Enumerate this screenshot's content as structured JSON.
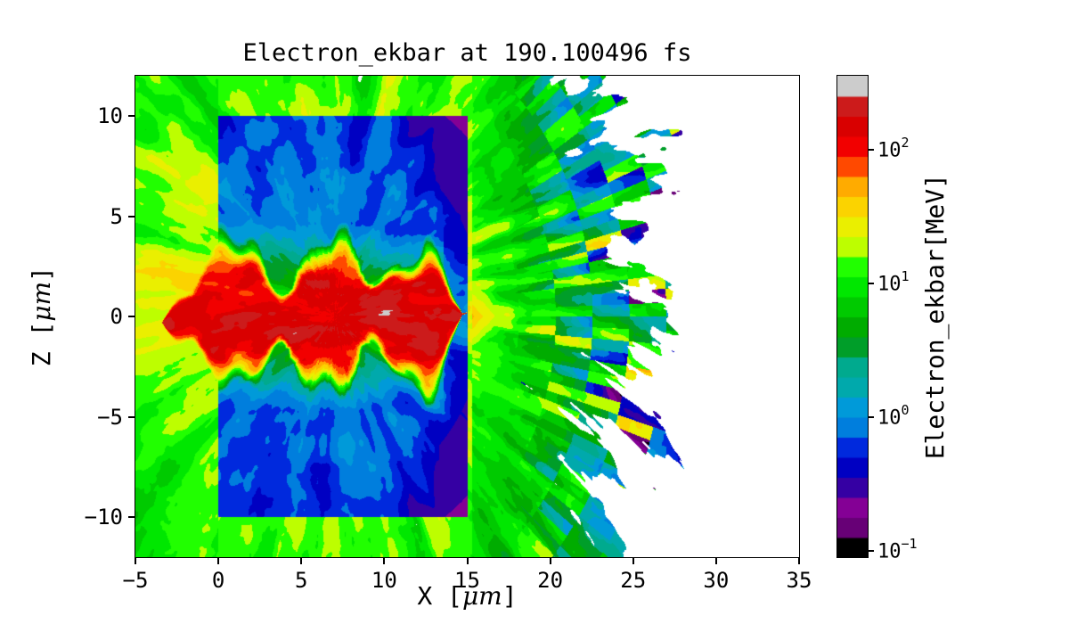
{
  "figure": {
    "background": "#ffffff"
  },
  "chart_data": {
    "type": "heatmap",
    "title": "Electron_ekbar at 190.100496 fs",
    "xlabel": "X [μm]",
    "ylabel": "Z [μm]",
    "xlim": [
      -5,
      35
    ],
    "ylim": [
      -12,
      12
    ],
    "xticks": [
      -5,
      0,
      5,
      10,
      15,
      20,
      25,
      30,
      35
    ],
    "xtick_labels": [
      "−5",
      "0",
      "5",
      "10",
      "15",
      "20",
      "25",
      "30",
      "35"
    ],
    "yticks": [
      10,
      5,
      0,
      -5,
      -10
    ],
    "ytick_labels": [
      "10",
      "5",
      "0",
      "−5",
      "−10"
    ],
    "grid": false,
    "background_masked_color": "#ffffff",
    "colorbar": {
      "label": "Electron_ekbar[MeV]",
      "scale": "log",
      "unit": "MeV",
      "tick_values": [
        100,
        10,
        1,
        0.1
      ],
      "tick_exponents": [
        "2",
        "1",
        "0",
        "−1"
      ],
      "log10_min": -1.05,
      "log10_max": 2.55,
      "n_levels": 24,
      "colormap": "nipy_spectral",
      "colormap_stops": [
        [
          0.0,
          "#000000"
        ],
        [
          0.05,
          "#770088"
        ],
        [
          0.1,
          "#880099"
        ],
        [
          0.15,
          "#0000aa"
        ],
        [
          0.2,
          "#0000dd"
        ],
        [
          0.25,
          "#0077dd"
        ],
        [
          0.3,
          "#0099dd"
        ],
        [
          0.35,
          "#00aaaa"
        ],
        [
          0.4,
          "#00aa88"
        ],
        [
          0.45,
          "#009900"
        ],
        [
          0.5,
          "#00bb00"
        ],
        [
          0.55,
          "#00dd00"
        ],
        [
          0.6,
          "#00ff00"
        ],
        [
          0.65,
          "#bbff00"
        ],
        [
          0.7,
          "#eeee00"
        ],
        [
          0.75,
          "#ffcc00"
        ],
        [
          0.8,
          "#ff9900"
        ],
        [
          0.85,
          "#ff0000"
        ],
        [
          0.9,
          "#dd0000"
        ],
        [
          0.95,
          "#cc0000"
        ],
        [
          1.0,
          "#cccccc"
        ]
      ]
    },
    "field_features": {
      "target_box_x_um": [
        0,
        15
      ],
      "target_box_z_um": [
        -10,
        10
      ],
      "hot_channel": {
        "x_range_um": [
          -3,
          14.7
        ],
        "z_center_um": 0,
        "half_width_um": 1.5,
        "peak_log10_mev": 2.5
      },
      "source_focus_um": {
        "x": 7,
        "z": 0
      },
      "left_plume_log10_mev": 1.5,
      "right_spray_x_range_um": [
        15,
        35
      ]
    }
  }
}
